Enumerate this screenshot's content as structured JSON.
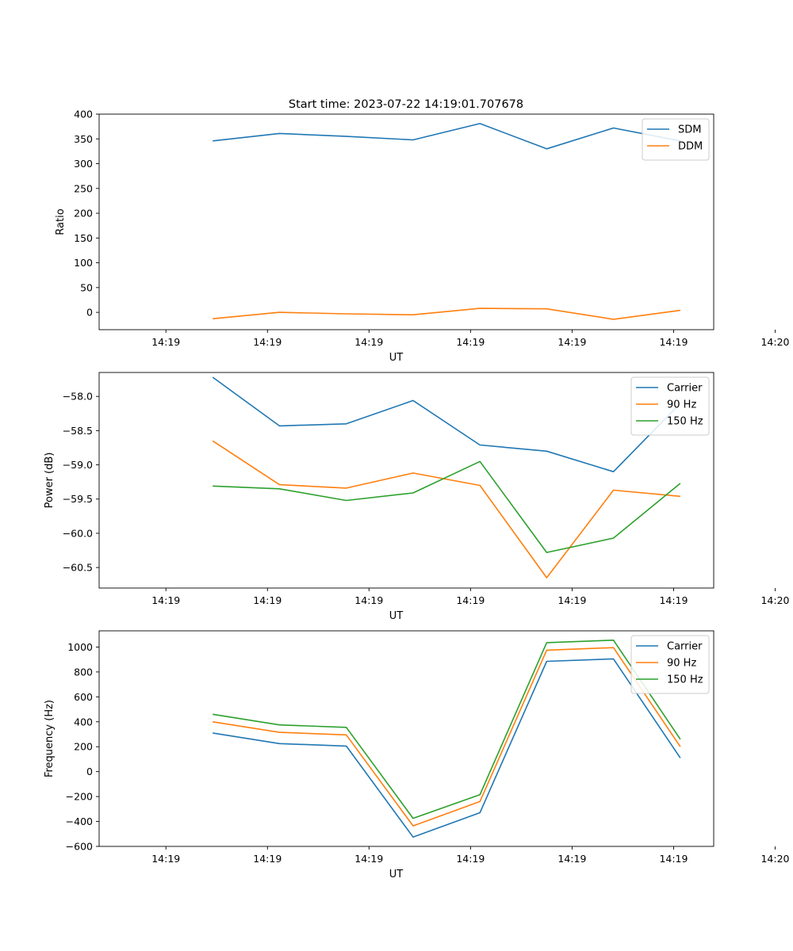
{
  "figure": {
    "title": "Start time: 2023-07-22 14:19:01.707678"
  },
  "chart_data": [
    {
      "type": "line",
      "title": "Start time: 2023-07-22 14:19:01.707678",
      "xlabel": "UT",
      "ylabel": "Ratio",
      "x": [
        0.35,
        0.85,
        1.35,
        1.85,
        2.35,
        2.85,
        3.35,
        3.85
      ],
      "xlim": [
        -0.5,
        4.1
      ],
      "x_ticks": [
        0,
        0.76,
        1.52,
        2.28,
        3.04,
        3.8,
        4.56
      ],
      "x_tick_labels": [
        "14:19",
        "14:19",
        "14:19",
        "14:19",
        "14:19",
        "14:19",
        "14:20"
      ],
      "ylim": [
        -35,
        400
      ],
      "y_ticks": [
        0,
        50,
        100,
        150,
        200,
        250,
        300,
        350,
        400
      ],
      "y_tick_labels": [
        "0",
        "50",
        "100",
        "150",
        "200",
        "250",
        "300",
        "350",
        "400"
      ],
      "legend_position": "top-right",
      "series": [
        {
          "name": "SDM",
          "color": "#1f77b4",
          "values": [
            346,
            361,
            355,
            348,
            381,
            330,
            372,
            346
          ]
        },
        {
          "name": "DDM",
          "color": "#ff7f0e",
          "values": [
            -13,
            0,
            -3,
            -5,
            8,
            7,
            -14,
            4
          ]
        }
      ]
    },
    {
      "type": "line",
      "title": "",
      "xlabel": "UT",
      "ylabel": "Power (dB)",
      "x": [
        0.35,
        0.85,
        1.35,
        1.85,
        2.35,
        2.85,
        3.35,
        3.85
      ],
      "xlim": [
        -0.5,
        4.1
      ],
      "x_ticks": [
        0,
        0.76,
        1.52,
        2.28,
        3.04,
        3.8,
        4.56
      ],
      "x_tick_labels": [
        "14:19",
        "14:19",
        "14:19",
        "14:19",
        "14:19",
        "14:19",
        "14:20"
      ],
      "ylim": [
        -60.8,
        -57.65
      ],
      "y_ticks": [
        -60.5,
        -60.0,
        -59.5,
        -59.0,
        -58.5,
        -58.0
      ],
      "y_tick_labels": [
        "−60.5",
        "−60.0",
        "−59.5",
        "−59.0",
        "−58.5",
        "−58.0"
      ],
      "legend_position": "top-right",
      "series": [
        {
          "name": "Carrier",
          "color": "#1f77b4",
          "values": [
            -57.72,
            -58.43,
            -58.4,
            -58.06,
            -58.71,
            -58.8,
            -59.1,
            -58.1
          ]
        },
        {
          "name": "90 Hz",
          "color": "#ff7f0e",
          "values": [
            -58.65,
            -59.29,
            -59.34,
            -59.12,
            -59.3,
            -60.65,
            -59.37,
            -59.46
          ]
        },
        {
          "name": "150 Hz",
          "color": "#2ca02c",
          "values": [
            -59.31,
            -59.35,
            -59.52,
            -59.41,
            -58.95,
            -60.28,
            -60.07,
            -59.27
          ]
        }
      ]
    },
    {
      "type": "line",
      "title": "",
      "xlabel": "UT",
      "ylabel": "Frequency (Hz)",
      "x": [
        0.35,
        0.85,
        1.35,
        1.85,
        2.35,
        2.85,
        3.35,
        3.85
      ],
      "xlim": [
        -0.5,
        4.1
      ],
      "x_ticks": [
        0,
        0.76,
        1.52,
        2.28,
        3.04,
        3.8,
        4.56
      ],
      "x_tick_labels": [
        "14:19",
        "14:19",
        "14:19",
        "14:19",
        "14:19",
        "14:19",
        "14:20"
      ],
      "ylim": [
        -600,
        1130
      ],
      "y_ticks": [
        -600,
        -400,
        -200,
        0,
        200,
        400,
        600,
        800,
        1000
      ],
      "y_tick_labels": [
        "−600",
        "−400",
        "−200",
        "0",
        "200",
        "400",
        "600",
        "800",
        "1000"
      ],
      "legend_position": "top-right",
      "series": [
        {
          "name": "Carrier",
          "color": "#1f77b4",
          "values": [
            310,
            225,
            205,
            -525,
            -330,
            885,
            905,
            110
          ]
        },
        {
          "name": "90 Hz",
          "color": "#ff7f0e",
          "values": [
            400,
            315,
            295,
            -435,
            -240,
            975,
            995,
            200
          ]
        },
        {
          "name": "150 Hz",
          "color": "#2ca02c",
          "values": [
            460,
            375,
            355,
            -375,
            -185,
            1035,
            1055,
            260
          ]
        }
      ]
    }
  ]
}
